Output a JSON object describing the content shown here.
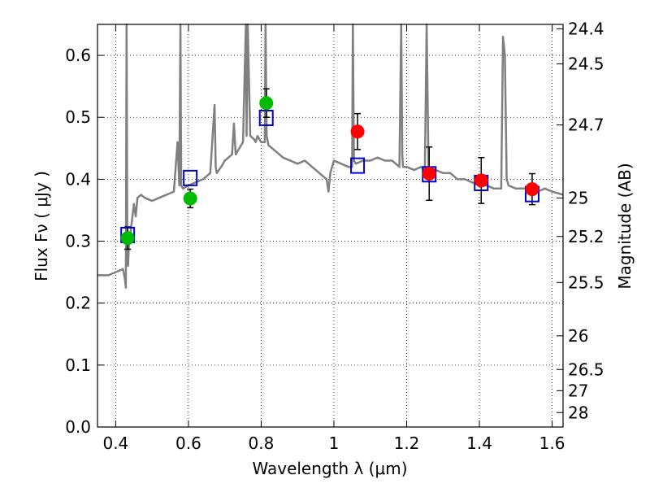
{
  "chart_data": {
    "type": "scatter",
    "xlabel": "Wavelength  λ (μm)",
    "ylabel": "Flux  Fν  ( μJy )",
    "y2label": "Magnitude (AB)",
    "xlim": [
      0.35,
      1.63
    ],
    "ylim": [
      0.0,
      0.65
    ],
    "grid": true,
    "x_ticks": [
      "0.4",
      "0.6",
      "0.8",
      "1",
      "1.2",
      "1.4",
      "1.6"
    ],
    "x_tick_values": [
      0.4,
      0.6,
      0.8,
      1.0,
      1.2,
      1.4,
      1.6
    ],
    "y_ticks": [
      "0.0",
      "0.1",
      "0.2",
      "0.3",
      "0.4",
      "0.5",
      "0.6"
    ],
    "y_tick_values": [
      0.0,
      0.1,
      0.2,
      0.3,
      0.4,
      0.5,
      0.6
    ],
    "mag_ticks": [
      {
        "label": "24.4",
        "flux": 0.6427
      },
      {
        "label": "24.5",
        "flux": 0.5862
      },
      {
        "label": "24.7",
        "flux": 0.4876
      },
      {
        "label": "25",
        "flux": 0.3698
      },
      {
        "label": "25.2",
        "flux": 0.3076
      },
      {
        "label": "25.5",
        "flux": 0.2333
      },
      {
        "label": "26",
        "flux": 0.1472
      },
      {
        "label": "26.5",
        "flux": 0.0929
      },
      {
        "label": "27",
        "flux": 0.0586
      },
      {
        "label": "28",
        "flux": 0.0233
      }
    ],
    "model_spectrum": {
      "color": "#808080",
      "x": [
        0.35,
        0.38,
        0.4,
        0.42,
        0.425,
        0.428,
        0.43,
        0.432,
        0.434,
        0.436,
        0.44,
        0.45,
        0.455,
        0.46,
        0.47,
        0.48,
        0.5,
        0.52,
        0.54,
        0.56,
        0.57,
        0.575,
        0.578,
        0.58,
        0.585,
        0.6,
        0.62,
        0.64,
        0.66,
        0.672,
        0.675,
        0.678,
        0.69,
        0.7,
        0.72,
        0.725,
        0.73,
        0.74,
        0.75,
        0.758,
        0.76,
        0.763,
        0.77,
        0.78,
        0.785,
        0.79,
        0.8,
        0.81,
        0.812,
        0.815,
        0.82,
        0.84,
        0.86,
        0.88,
        0.9,
        0.92,
        0.94,
        0.96,
        0.98,
        0.985,
        0.99,
        1.0,
        1.02,
        1.04,
        1.05,
        1.052,
        1.055,
        1.06,
        1.08,
        1.1,
        1.12,
        1.14,
        1.16,
        1.18,
        1.185,
        1.188,
        1.19,
        1.2,
        1.22,
        1.24,
        1.25,
        1.255,
        1.26,
        1.28,
        1.3,
        1.32,
        1.34,
        1.36,
        1.38,
        1.4,
        1.42,
        1.44,
        1.46,
        1.465,
        1.47,
        1.475,
        1.48,
        1.5,
        1.52,
        1.54,
        1.56,
        1.58,
        1.6,
        1.63
      ],
      "y": [
        0.245,
        0.245,
        0.25,
        0.255,
        0.24,
        0.225,
        0.65,
        0.28,
        0.26,
        0.29,
        0.31,
        0.36,
        0.34,
        0.37,
        0.375,
        0.37,
        0.365,
        0.37,
        0.375,
        0.38,
        0.46,
        0.39,
        0.65,
        0.39,
        0.385,
        0.39,
        0.395,
        0.4,
        0.41,
        0.52,
        0.42,
        0.41,
        0.42,
        0.43,
        0.44,
        0.49,
        0.44,
        0.45,
        0.46,
        0.65,
        0.47,
        0.65,
        0.47,
        0.465,
        0.46,
        0.47,
        0.46,
        0.46,
        0.65,
        0.47,
        0.455,
        0.445,
        0.435,
        0.43,
        0.425,
        0.43,
        0.42,
        0.41,
        0.4,
        0.38,
        0.41,
        0.43,
        0.425,
        0.42,
        0.42,
        0.65,
        0.43,
        0.425,
        0.43,
        0.43,
        0.435,
        0.43,
        0.43,
        0.42,
        0.65,
        0.44,
        0.42,
        0.42,
        0.415,
        0.42,
        0.415,
        0.65,
        0.42,
        0.415,
        0.41,
        0.41,
        0.4,
        0.4,
        0.395,
        0.39,
        0.39,
        0.385,
        0.385,
        0.63,
        0.6,
        0.4,
        0.39,
        0.385,
        0.385,
        0.385,
        0.38,
        0.385,
        0.38,
        0.375
      ]
    },
    "model_photometry": {
      "marker": "open-square",
      "color": "#0000cc",
      "x": [
        0.433,
        0.605,
        0.814,
        1.065,
        1.262,
        1.405,
        1.545
      ],
      "y": [
        0.31,
        0.402,
        0.499,
        0.422,
        0.408,
        0.394,
        0.376
      ]
    },
    "observed_optical": {
      "marker": "filled-circle",
      "color": "#00bb00",
      "x": [
        0.433,
        0.605,
        0.814
      ],
      "y": [
        0.305,
        0.369,
        0.523
      ],
      "yerr": [
        0.018,
        0.015,
        0.023
      ]
    },
    "observed_nir": {
      "marker": "filled-circle",
      "color": "#ff0000",
      "x": [
        1.065,
        1.262,
        1.405,
        1.545
      ],
      "y": [
        0.477,
        0.409,
        0.398,
        0.384
      ],
      "yerr": [
        0.029,
        0.043,
        0.037,
        0.025
      ]
    }
  }
}
